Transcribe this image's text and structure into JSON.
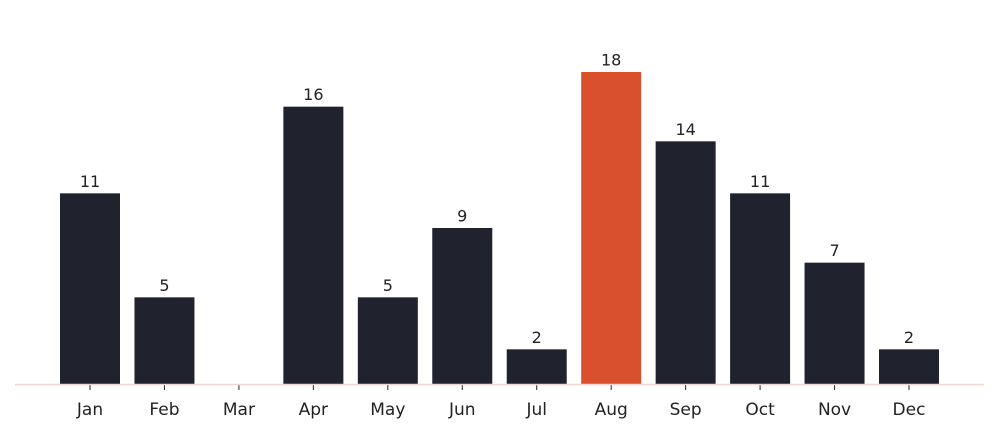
{
  "chart_data": {
    "type": "bar",
    "categories": [
      "Jan",
      "Feb",
      "Mar",
      "Apr",
      "May",
      "Jun",
      "Jul",
      "Aug",
      "Sep",
      "Oct",
      "Nov",
      "Dec"
    ],
    "values": [
      11,
      5,
      null,
      16,
      5,
      9,
      2,
      18,
      14,
      11,
      7,
      2
    ],
    "colors": [
      "#20232d",
      "#20232d",
      "#20232d",
      "#20232d",
      "#20232d",
      "#20232d",
      "#20232d",
      "#d9512c",
      "#20232d",
      "#20232d",
      "#20232d",
      "#20232d"
    ],
    "axis_color": "#f0d8d0"
  }
}
